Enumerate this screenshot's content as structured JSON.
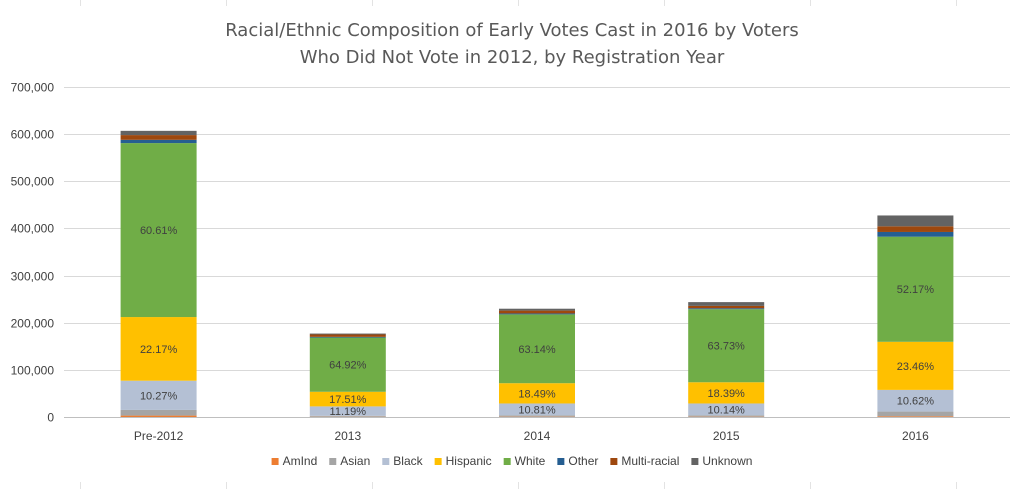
{
  "chart_data": {
    "type": "bar",
    "stacked": true,
    "title": "Racial/Ethnic Composition of Early Votes Cast in 2016 by Voters Who Did Not Vote in 2012, by Registration Year",
    "title_lines": [
      "Racial/Ethnic Composition of Early Votes Cast in 2016 by Voters",
      "Who Did Not Vote in 2012, by Registration Year"
    ],
    "xlabel": "",
    "ylabel": "",
    "ylim": [
      0,
      700000
    ],
    "yticks": [
      0,
      100000,
      200000,
      300000,
      400000,
      500000,
      600000,
      700000
    ],
    "ytick_labels": [
      "0",
      "100,000",
      "200,000",
      "300,000",
      "400,000",
      "500,000",
      "600,000",
      "700,000"
    ],
    "grid": true,
    "legend_position": "bottom",
    "categories": [
      "Pre-2012",
      "2013",
      "2014",
      "2015",
      "2016"
    ],
    "series": [
      {
        "name": "AmInd",
        "color": "#ED7D31",
        "values": [
          3000,
          500,
          700,
          700,
          1500
        ]
      },
      {
        "name": "Asian",
        "color": "#A5A5A5",
        "values": [
          12000,
          2000,
          3000,
          3000,
          10000
        ]
      },
      {
        "name": "Black",
        "color": "#B4C0D4",
        "values": [
          62000,
          20000,
          25000,
          25000,
          46000
        ],
        "labels": [
          "10.27%",
          "11.19%",
          "10.81%",
          "10.14%",
          "10.62%"
        ]
      },
      {
        "name": "Hispanic",
        "color": "#FFC000",
        "values": [
          135000,
          31000,
          43000,
          45000,
          102000
        ],
        "labels": [
          "22.17%",
          "17.51%",
          "18.49%",
          "18.39%",
          "23.46%"
        ]
      },
      {
        "name": "White",
        "color": "#70AD47",
        "values": [
          369000,
          115000,
          146000,
          155000,
          223000
        ],
        "labels": [
          "60.61%",
          "64.92%",
          "63.14%",
          "63.73%",
          "52.17%"
        ]
      },
      {
        "name": "Other",
        "color": "#255E91",
        "values": [
          7000,
          1500,
          2000,
          2000,
          10000
        ]
      },
      {
        "name": "Multi-racial",
        "color": "#9E480E",
        "values": [
          10000,
          5000,
          6000,
          5000,
          12000
        ]
      },
      {
        "name": "Unknown",
        "color": "#636363",
        "values": [
          9000,
          2000,
          4000,
          8000,
          23000
        ]
      }
    ]
  }
}
